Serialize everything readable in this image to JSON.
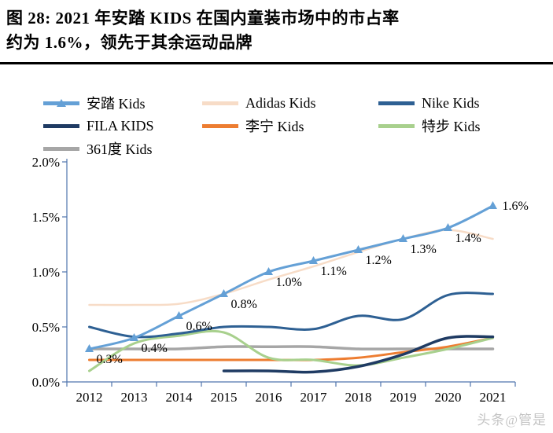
{
  "title": {
    "line1": "图 28: 2021 年安踏 KIDS 在国内童装市场中的市占率",
    "line2": "约为 1.6%，领先于其余运动品牌"
  },
  "watermark": "头条@管是",
  "chart_data": {
    "type": "line",
    "x": [
      "2012",
      "2013",
      "2014",
      "2015",
      "2016",
      "2017",
      "2018",
      "2019",
      "2020",
      "2021"
    ],
    "ylim": [
      0,
      2.0
    ],
    "yticks": [
      {
        "value": 2.0,
        "label": "2.0%"
      },
      {
        "value": 1.5,
        "label": "1.5%"
      },
      {
        "value": 1.0,
        "label": "1.0%"
      },
      {
        "value": 0.5,
        "label": "0.5%"
      },
      {
        "value": 0.0,
        "label": "0.0%"
      }
    ],
    "grid": false,
    "legend_position": "top-left",
    "axis_color": "#4f74ad",
    "series": [
      {
        "id": "anta",
        "name": "安踏 Kids",
        "color": "#64a0d6",
        "line_width": 3,
        "marker": "triangle",
        "values": [
          0.3,
          0.4,
          0.6,
          0.8,
          1.0,
          1.1,
          1.2,
          1.3,
          1.4,
          1.6
        ],
        "point_labels": [
          "0.3%",
          "0.4%",
          "0.6%",
          "0.8%",
          "1.0%",
          "1.1%",
          "1.2%",
          "1.3%",
          "1.4%",
          "1.6%"
        ]
      },
      {
        "id": "adidas",
        "name": "Adidas Kids",
        "color": "#f7dcc7",
        "line_width": 2.5,
        "marker": "none",
        "values": [
          0.7,
          0.7,
          0.71,
          0.8,
          0.93,
          1.05,
          1.18,
          1.3,
          1.38,
          1.3
        ]
      },
      {
        "id": "nike",
        "name": "Nike Kids",
        "color": "#2e6093",
        "line_width": 3,
        "marker": "none",
        "values": [
          0.5,
          0.41,
          0.44,
          0.5,
          0.5,
          0.48,
          0.6,
          0.57,
          0.79,
          0.8
        ]
      },
      {
        "id": "fila",
        "name": "FILA KIDS",
        "color": "#1f3b63",
        "line_width": 3.5,
        "marker": "none",
        "values": [
          null,
          null,
          null,
          0.1,
          0.1,
          0.09,
          0.14,
          0.25,
          0.4,
          0.41
        ]
      },
      {
        "id": "lining",
        "name": "李宁 Kids",
        "color": "#ed7d31",
        "line_width": 3,
        "marker": "none",
        "values": [
          0.2,
          0.2,
          0.2,
          0.2,
          0.2,
          0.2,
          0.22,
          0.27,
          0.32,
          0.4
        ]
      },
      {
        "id": "xtep",
        "name": "特步 Kids",
        "color": "#a8d08d",
        "line_width": 3,
        "marker": "none",
        "values": [
          0.1,
          0.35,
          0.42,
          0.45,
          0.22,
          0.2,
          0.15,
          0.22,
          0.3,
          0.4
        ]
      },
      {
        "id": "du361",
        "name": "361度 Kids",
        "color": "#a6a6a6",
        "line_width": 3.5,
        "marker": "none",
        "values": [
          0.3,
          0.3,
          0.3,
          0.32,
          0.32,
          0.32,
          0.3,
          0.3,
          0.3,
          0.3
        ]
      }
    ]
  }
}
